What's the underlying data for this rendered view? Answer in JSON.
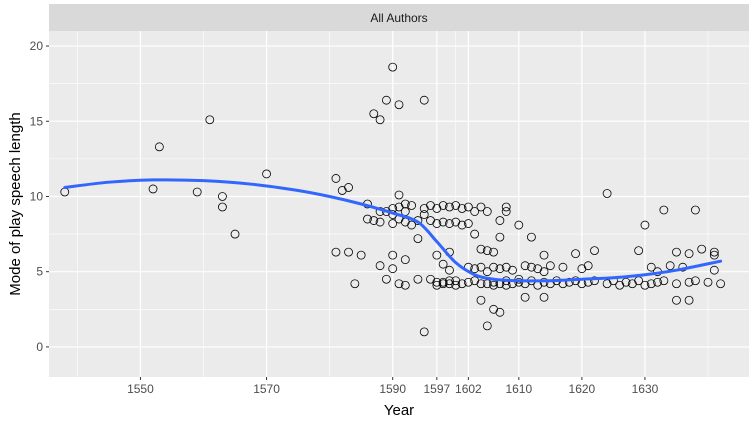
{
  "facet_strip": "All Authors",
  "chart_data": {
    "type": "scatter",
    "title": "",
    "xlabel": "Year",
    "ylabel": "Mode of play speech length",
    "xlim": [
      1535.5,
      1646.5
    ],
    "ylim": [
      -2,
      21
    ],
    "x_ticks": [
      1550,
      1570,
      1590,
      1597,
      1602,
      1610,
      1620,
      1630
    ],
    "x_tick_labels": [
      "1550",
      "1570",
      "1590",
      "1597",
      "1602",
      "1610",
      "1620",
      "1630"
    ],
    "y_ticks": [
      0,
      5,
      10,
      15,
      20
    ],
    "y_tick_labels": [
      "0",
      "5",
      "10",
      "15",
      "20"
    ],
    "grid": true,
    "marker": "open-circle",
    "points": [
      [
        1538,
        10.3
      ],
      [
        1552,
        10.5
      ],
      [
        1553,
        13.3
      ],
      [
        1559,
        10.3
      ],
      [
        1561,
        15.1
      ],
      [
        1563,
        10.0
      ],
      [
        1563,
        9.3
      ],
      [
        1565,
        7.5
      ],
      [
        1570,
        11.5
      ],
      [
        1581,
        11.2
      ],
      [
        1581,
        6.3
      ],
      [
        1582,
        10.4
      ],
      [
        1583,
        10.6
      ],
      [
        1583,
        6.3
      ],
      [
        1584,
        4.2
      ],
      [
        1585,
        6.1
      ],
      [
        1586,
        9.5
      ],
      [
        1586,
        8.5
      ],
      [
        1587,
        15.5
      ],
      [
        1587,
        8.4
      ],
      [
        1588,
        15.1
      ],
      [
        1588,
        9.0
      ],
      [
        1588,
        8.3
      ],
      [
        1588,
        5.4
      ],
      [
        1589,
        16.4
      ],
      [
        1589,
        9.0
      ],
      [
        1589,
        4.5
      ],
      [
        1590,
        18.6
      ],
      [
        1590,
        9.2
      ],
      [
        1590,
        8.8
      ],
      [
        1590,
        8.2
      ],
      [
        1590,
        6.1
      ],
      [
        1590,
        5.2
      ],
      [
        1591,
        16.1
      ],
      [
        1591,
        10.1
      ],
      [
        1591,
        9.3
      ],
      [
        1591,
        8.5
      ],
      [
        1591,
        4.2
      ],
      [
        1592,
        9.5
      ],
      [
        1592,
        9.0
      ],
      [
        1592,
        8.3
      ],
      [
        1592,
        5.8
      ],
      [
        1592,
        4.1
      ],
      [
        1593,
        9.4
      ],
      [
        1593,
        8.1
      ],
      [
        1594,
        8.4
      ],
      [
        1594,
        7.2
      ],
      [
        1594,
        4.5
      ],
      [
        1595,
        16.4
      ],
      [
        1595,
        9.2
      ],
      [
        1595,
        8.8
      ],
      [
        1595,
        1.0
      ],
      [
        1596,
        9.4
      ],
      [
        1596,
        8.4
      ],
      [
        1596,
        4.5
      ],
      [
        1597,
        9.2
      ],
      [
        1597,
        8.2
      ],
      [
        1597,
        6.1
      ],
      [
        1597,
        4.3
      ],
      [
        1597,
        4.1
      ],
      [
        1598,
        9.4
      ],
      [
        1598,
        8.3
      ],
      [
        1598,
        5.5
      ],
      [
        1598,
        4.3
      ],
      [
        1598,
        4.2
      ],
      [
        1599,
        9.3
      ],
      [
        1599,
        8.2
      ],
      [
        1599,
        6.3
      ],
      [
        1599,
        5.1
      ],
      [
        1599,
        4.4
      ],
      [
        1599,
        4.2
      ],
      [
        1600,
        9.4
      ],
      [
        1600,
        8.3
      ],
      [
        1600,
        4.4
      ],
      [
        1600,
        4.1
      ],
      [
        1601,
        9.2
      ],
      [
        1601,
        8.1
      ],
      [
        1601,
        4.2
      ],
      [
        1602,
        9.3
      ],
      [
        1602,
        8.2
      ],
      [
        1602,
        5.3
      ],
      [
        1602,
        4.3
      ],
      [
        1603,
        9.0
      ],
      [
        1603,
        7.5
      ],
      [
        1603,
        5.2
      ],
      [
        1603,
        4.4
      ],
      [
        1604,
        9.3
      ],
      [
        1604,
        6.5
      ],
      [
        1604,
        5.3
      ],
      [
        1604,
        4.2
      ],
      [
        1604,
        3.1
      ],
      [
        1605,
        9.0
      ],
      [
        1605,
        6.4
      ],
      [
        1605,
        5.0
      ],
      [
        1605,
        4.2
      ],
      [
        1605,
        1.4
      ],
      [
        1606,
        6.3
      ],
      [
        1606,
        5.3
      ],
      [
        1606,
        4.3
      ],
      [
        1606,
        4.1
      ],
      [
        1606,
        2.5
      ],
      [
        1607,
        8.4
      ],
      [
        1607,
        7.3
      ],
      [
        1607,
        5.2
      ],
      [
        1607,
        4.2
      ],
      [
        1607,
        2.3
      ],
      [
        1608,
        9.3
      ],
      [
        1608,
        9.0
      ],
      [
        1608,
        5.3
      ],
      [
        1608,
        4.4
      ],
      [
        1608,
        4.1
      ],
      [
        1609,
        5.1
      ],
      [
        1609,
        4.2
      ],
      [
        1610,
        8.1
      ],
      [
        1610,
        4.5
      ],
      [
        1610,
        4.3
      ],
      [
        1611,
        5.4
      ],
      [
        1611,
        4.2
      ],
      [
        1611,
        3.3
      ],
      [
        1612,
        7.3
      ],
      [
        1612,
        5.3
      ],
      [
        1612,
        4.4
      ],
      [
        1613,
        5.2
      ],
      [
        1613,
        4.1
      ],
      [
        1614,
        6.1
      ],
      [
        1614,
        5.0
      ],
      [
        1614,
        4.3
      ],
      [
        1614,
        3.3
      ],
      [
        1615,
        5.4
      ],
      [
        1615,
        4.2
      ],
      [
        1616,
        4.4
      ],
      [
        1617,
        5.3
      ],
      [
        1617,
        4.2
      ],
      [
        1618,
        4.3
      ],
      [
        1619,
        6.2
      ],
      [
        1619,
        4.4
      ],
      [
        1620,
        5.2
      ],
      [
        1620,
        4.2
      ],
      [
        1621,
        5.4
      ],
      [
        1621,
        4.3
      ],
      [
        1622,
        6.4
      ],
      [
        1622,
        4.4
      ],
      [
        1624,
        10.2
      ],
      [
        1624,
        4.2
      ],
      [
        1625,
        4.4
      ],
      [
        1626,
        4.1
      ],
      [
        1627,
        4.3
      ],
      [
        1628,
        4.2
      ],
      [
        1629,
        6.4
      ],
      [
        1629,
        4.4
      ],
      [
        1630,
        8.1
      ],
      [
        1630,
        4.1
      ],
      [
        1631,
        5.3
      ],
      [
        1631,
        4.2
      ],
      [
        1632,
        5.0
      ],
      [
        1632,
        4.3
      ],
      [
        1633,
        9.1
      ],
      [
        1633,
        4.4
      ],
      [
        1634,
        5.4
      ],
      [
        1635,
        6.3
      ],
      [
        1635,
        4.2
      ],
      [
        1635,
        3.1
      ],
      [
        1636,
        5.3
      ],
      [
        1637,
        6.2
      ],
      [
        1637,
        4.3
      ],
      [
        1637,
        3.1
      ],
      [
        1638,
        9.1
      ],
      [
        1638,
        4.4
      ],
      [
        1639,
        6.5
      ],
      [
        1640,
        4.3
      ],
      [
        1641,
        6.3
      ],
      [
        1641,
        6.1
      ],
      [
        1641,
        5.1
      ],
      [
        1642,
        4.2
      ]
    ],
    "smooth": {
      "name": "",
      "x": [
        1538,
        1545,
        1552,
        1560,
        1568,
        1575,
        1580,
        1585,
        1590,
        1594,
        1597,
        1600,
        1603,
        1606,
        1610,
        1615,
        1620,
        1625,
        1630,
        1635,
        1642
      ],
      "y": [
        10.6,
        10.95,
        11.1,
        11.05,
        10.8,
        10.4,
        10.0,
        9.5,
        8.9,
        8.3,
        7.0,
        5.6,
        4.8,
        4.5,
        4.4,
        4.4,
        4.5,
        4.6,
        4.8,
        5.1,
        5.7
      ]
    },
    "colors": {
      "panel_background": "#ebebeb",
      "strip_background": "#d9d9d9",
      "grid": "#ffffff",
      "smooth_line": "#3366ff",
      "point_stroke": "#000000"
    }
  }
}
